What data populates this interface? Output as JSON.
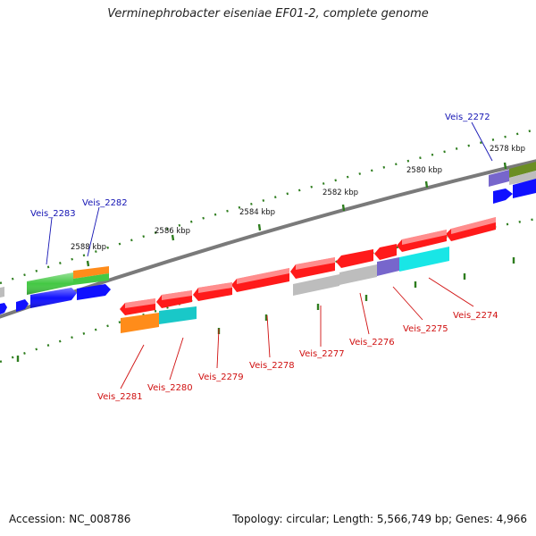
{
  "title": "Verminephrobacter eiseniae EF01-2, complete genome",
  "footer": {
    "accession": "Accession: NC_008786",
    "summary": "Topology: circular; Length: 5,566,749 bp; Genes: 4,966"
  },
  "colors": {
    "backbone": "#808080",
    "tick": "#2e7d1e",
    "label_forward": "#1414b4",
    "label_reverse": "#d01010",
    "kbp_text": "#111111",
    "gene_red": "#ff1a1a",
    "gene_gray": "#bdbdbd",
    "gene_blue": "#1010ff",
    "gene_green": "#44c844",
    "gene_orange": "#ff8c1a",
    "gene_cyan": "#19e6e6",
    "gene_teal": "#19c8c8",
    "gene_purple": "#7766cc",
    "gene_olive": "#6b8e23"
  },
  "kbp_labels": [
    "2578 kbp",
    "2580 kbp",
    "2582 kbp",
    "2584 kbp",
    "2586 kbp",
    "2588 kbp"
  ],
  "gene_labels": {
    "forward": [
      "Veis_2272",
      "Veis_2282",
      "Veis_2283"
    ],
    "reverse": [
      "Veis_2274",
      "Veis_2275",
      "Veis_2276",
      "Veis_2277",
      "Veis_2278",
      "Veis_2279",
      "Veis_2280",
      "Veis_2281"
    ]
  }
}
